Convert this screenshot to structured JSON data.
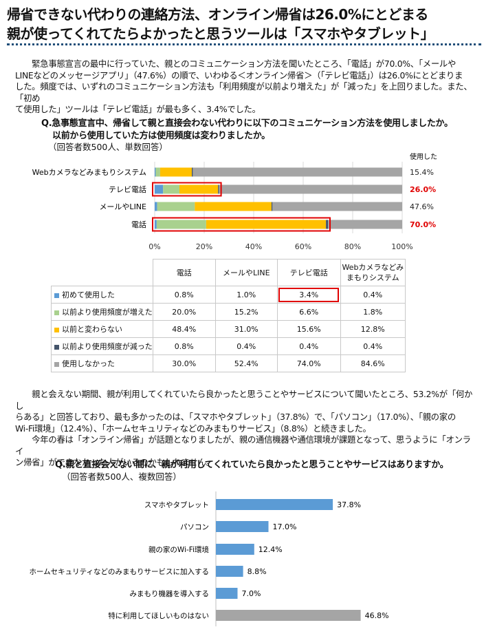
{
  "header": {
    "line1": "帰省できない代わりの連絡方法、オンライン帰省は26.0%にとどまる",
    "line2": "親が使ってくれてたらよかったと思うツールは「スマホやタブレット」"
  },
  "paragraph1": "　　緊急事態宣言の最中に行っていた、親とのコミュニケーション方法を聞いたところ、「電話」が70.0%、「メールや\nLINEなどのメッセージアプリ」（47.6%）の順で、いわゆる＜オンライン帰省＞（「テレビ電話」）は26.0%にとどまりま\nした。頻度では、いずれのコミュニケーション方法も「利用頻度が以前より増えた」が「減った」を上回りました。また、「初め\nて使用した」ツールは「テレビ電話」が最も多く、3.4%でした。",
  "question1": {
    "line1": "Q.急事態宣言中、帰省して親と直接会わない代わりに以下のコミュニケーション方法を使用しましたか。",
    "line2": "以前から使用していた方は使用頻度は変わりましたか。",
    "note": "（回答者数500人、単数回答）"
  },
  "chart1_header": "使用した",
  "table1": {
    "columns": [
      "電話",
      "メールやLINE",
      "テレビ電話",
      "Webカメラなどみまもりシステム"
    ],
    "rows": [
      {
        "label": "初めて使用した",
        "values": [
          "0.8%",
          "1.0%",
          "3.4%",
          "0.4%"
        ]
      },
      {
        "label": "以前より使用頻度が増えた",
        "values": [
          "20.0%",
          "15.2%",
          "6.6%",
          "1.8%"
        ]
      },
      {
        "label": "以前と変わらない",
        "values": [
          "48.4%",
          "31.0%",
          "15.6%",
          "12.8%"
        ]
      },
      {
        "label": "以前より使用頻度が減った",
        "values": [
          "0.8%",
          "0.4%",
          "0.4%",
          "0.4%"
        ]
      },
      {
        "label": "使用しなかった",
        "values": [
          "30.0%",
          "52.4%",
          "74.0%",
          "84.6%"
        ]
      }
    ]
  },
  "paragraph2": "　　親と会えない期間、親が利用してくれていたら良かったと思うことやサービスについて聞いたところ、53.2%が「何かし\nらある」と回答しており、最も多かったのは、「スマホやタブレット」（37.8%）で、「パソコン」（17.0%）、「親の家の\nWi-Fi環境」（12.4%）、「ホームセキュリティなどのみまもりサービス」（8.8%）と続きました。\n　　今年の春は「オンライン帰省」が話題となりましたが、親の通信機器や通信環境が課題となって、思うように「オンライ\nン帰省」ができなかった人がいるのかもしれません。",
  "question2": {
    "line1": "Q.親と直接会えない間に、親が利用してくれていたら良かったと思うことやサービスはありますか。",
    "note": "（回答者数500人、複数回答）"
  },
  "chart_data": [
    {
      "type": "bar",
      "orientation": "horizontal",
      "stacked": true,
      "categories": [
        "Webカメラなどみまもりシステム",
        "テレビ電話",
        "メールやLINE",
        "電話"
      ],
      "series": [
        {
          "name": "初めて使用した",
          "color": "#5b9bd5",
          "values": [
            0.4,
            3.4,
            1.0,
            0.8
          ]
        },
        {
          "name": "以前より使用頻度が増えた",
          "color": "#a9d18e",
          "values": [
            1.8,
            6.6,
            15.2,
            20.0
          ]
        },
        {
          "name": "以前と変わらない",
          "color": "#ffc000",
          "values": [
            12.8,
            15.6,
            31.0,
            48.4
          ]
        },
        {
          "name": "以前より使用頻度が減った",
          "color": "#44546a",
          "values": [
            0.4,
            0.4,
            0.4,
            0.8
          ]
        },
        {
          "name": "使用しなかった",
          "color": "#a5a5a5",
          "values": [
            84.6,
            74.0,
            52.4,
            30.0
          ]
        }
      ],
      "totals_used": [
        "15.4%",
        "26.0%",
        "47.6%",
        "70.0%"
      ],
      "highlighted_totals": [
        false,
        true,
        false,
        true
      ],
      "highlighted_bars": [
        false,
        true,
        false,
        true
      ],
      "highlight_color": "#e00000",
      "xlim": [
        0,
        100
      ],
      "xticks": [
        "0%",
        "20%",
        "40%",
        "60%",
        "80%",
        "100%"
      ],
      "grid": true
    },
    {
      "type": "bar",
      "orientation": "horizontal",
      "categories": [
        "スマホやタブレット",
        "パソコン",
        "親の家のWi-Fi環境",
        "ホームセキュリティなどのみまもりサービスに加入する",
        "みまもり機器を導入する",
        "特に利用してほしいものはない"
      ],
      "values": [
        37.8,
        17.0,
        12.4,
        8.8,
        7.0,
        46.8
      ],
      "labels": [
        "37.8%",
        "17.0%",
        "12.4%",
        "8.8%",
        "7.0%",
        "46.8%"
      ],
      "colors": [
        "#5b9bd5",
        "#5b9bd5",
        "#5b9bd5",
        "#5b9bd5",
        "#5b9bd5",
        "#a5a5a5"
      ],
      "xlim": [
        0,
        100
      ]
    }
  ]
}
